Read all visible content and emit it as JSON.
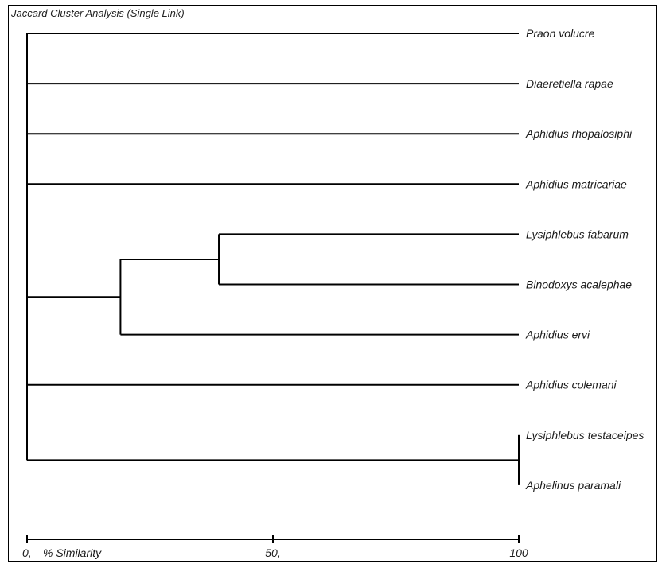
{
  "title": "Jaccard Cluster Analysis (Single Link)",
  "axis": {
    "min": 0,
    "max": 100,
    "ticks": [
      {
        "value": 0,
        "label": "0,"
      },
      {
        "value": 50,
        "label": "50,"
      },
      {
        "value": 100,
        "label": "100"
      }
    ],
    "label": "% Similarity"
  },
  "leaves": [
    "Praon volucre",
    "Diaeretiella rapae",
    "Aphidius rhopalosiphi",
    "Aphidius matricariae",
    "Lysiphlebus fabarum",
    "Binodoxys acalephae",
    "Aphidius ervi",
    "Aphidius colemani",
    "Lysiphlebus testaceipes",
    "Aphelinus paramali"
  ],
  "merges": [
    {
      "id": "n1",
      "children": [
        "L8",
        "L9"
      ],
      "similarity": 100
    },
    {
      "id": "n2",
      "children": [
        "L4",
        "L5"
      ],
      "similarity": 39
    },
    {
      "id": "n3",
      "children": [
        "n2",
        "L6"
      ],
      "similarity": 19
    },
    {
      "id": "root",
      "children": [
        "L0",
        "L1",
        "L2",
        "L3",
        "n3",
        "L7",
        "n1"
      ],
      "similarity": 0
    }
  ],
  "colors": {
    "line": "#000000",
    "text": "#1a1a1a"
  }
}
